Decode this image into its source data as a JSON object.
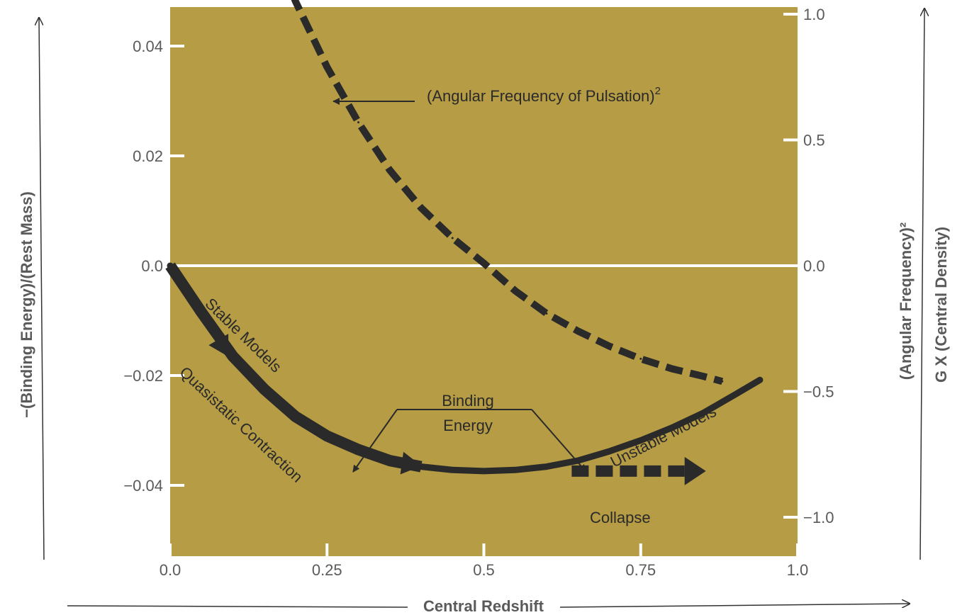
{
  "chart_data": {
    "type": "line",
    "xlabel": "Central Redshift",
    "ylabel_left": "−(Binding Energy)/(Rest Mass)",
    "ylabel_right_1": "(Angular Frequency)²",
    "ylabel_right_2": "G X (Central Density)",
    "xlim": [
      0.0,
      1.0
    ],
    "ylim_left": [
      -0.045,
      0.046
    ],
    "ylim_right": [
      -1.1,
      1.1
    ],
    "x_ticks": [
      "0.0",
      "0.25",
      "0.5",
      "0.75",
      "1.0"
    ],
    "x_tick_values": [
      0.0,
      0.25,
      0.5,
      0.75,
      1.0
    ],
    "y_left_ticks": [
      "0.04",
      "0.02",
      "0.0",
      "−0.02",
      "−0.04"
    ],
    "y_left_tick_values": [
      0.04,
      0.02,
      0.0,
      -0.02,
      -0.04
    ],
    "y_right_ticks": [
      "1.0",
      "0.5",
      "0.0",
      "−0.5",
      "−1.0"
    ],
    "y_right_tick_values": [
      1.0,
      0.5,
      0.0,
      -0.5,
      -1.0
    ],
    "grid": false,
    "colors": {
      "background": "#b59c45",
      "curve": "#2a2a2a",
      "zero_line": "#ffffff",
      "tick_mark": "#ffffff",
      "text": "#5a5a5a"
    },
    "series": [
      {
        "name": "Binding Energy",
        "axis": "left",
        "style": "solid",
        "x": [
          0.0,
          0.05,
          0.1,
          0.15,
          0.2,
          0.25,
          0.3,
          0.35,
          0.4,
          0.45,
          0.5,
          0.55,
          0.6,
          0.65,
          0.7,
          0.75,
          0.8,
          0.85,
          0.9,
          0.94
        ],
        "y": [
          0.0,
          -0.0085,
          -0.0165,
          -0.0225,
          -0.0275,
          -0.031,
          -0.0335,
          -0.0355,
          -0.0366,
          -0.0372,
          -0.0374,
          -0.0372,
          -0.0366,
          -0.0355,
          -0.0338,
          -0.0318,
          -0.0295,
          -0.0268,
          -0.0235,
          -0.0208
        ]
      },
      {
        "name": "(Angular Frequency of Pulsation)²",
        "axis": "right",
        "style": "dashed",
        "x": [
          0.18,
          0.2,
          0.25,
          0.3,
          0.35,
          0.4,
          0.45,
          0.5,
          0.55,
          0.6,
          0.65,
          0.7,
          0.75,
          0.8,
          0.85,
          0.88
        ],
        "y": [
          1.17,
          1.05,
          0.79,
          0.57,
          0.38,
          0.23,
          0.11,
          0.01,
          -0.1,
          -0.19,
          -0.26,
          -0.32,
          -0.37,
          -0.41,
          -0.44,
          -0.46
        ]
      }
    ],
    "annotations": {
      "stable": "Stable Models",
      "quasistatic": "Quasistatic Contraction",
      "binding_1": "Binding",
      "binding_2": "Energy",
      "unstable": "Unstable Models",
      "collapse": "Collapse",
      "pulsation": "(Angular Frequency of Pulsation)",
      "pulsation_sup": "2"
    }
  }
}
